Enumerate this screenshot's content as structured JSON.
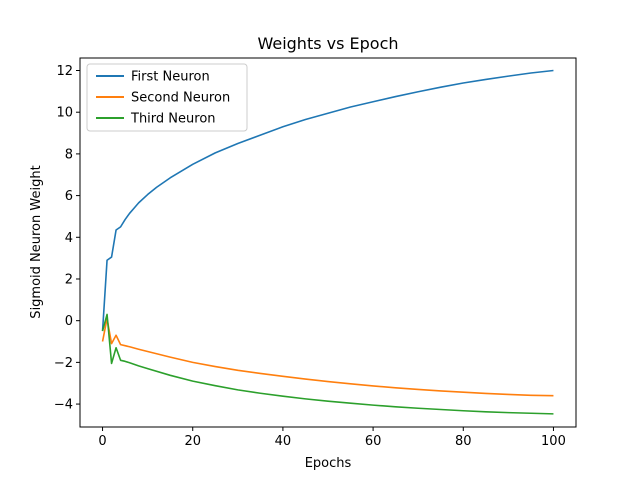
{
  "chart_data": {
    "type": "line",
    "title": "Weights vs Epoch",
    "xlabel": "Epochs",
    "ylabel": "Sigmoid Neuron Weight",
    "xlim": [
      -5,
      105
    ],
    "ylim": [
      -5.1,
      12.6
    ],
    "xticks": [
      0,
      20,
      40,
      60,
      80,
      100
    ],
    "yticks": [
      -4,
      -2,
      0,
      2,
      4,
      6,
      8,
      10,
      12
    ],
    "grid": false,
    "legend_position": "upper-left",
    "series": [
      {
        "name": "First Neuron",
        "color": "#1f77b4",
        "x": [
          0,
          1,
          2,
          3,
          4,
          5,
          6,
          7,
          8,
          10,
          12,
          15,
          20,
          25,
          30,
          35,
          40,
          45,
          50,
          55,
          60,
          65,
          70,
          75,
          80,
          85,
          90,
          95,
          100
        ],
        "y": [
          -0.5,
          2.9,
          3.05,
          4.35,
          4.5,
          4.85,
          5.15,
          5.4,
          5.65,
          6.05,
          6.4,
          6.85,
          7.5,
          8.05,
          8.5,
          8.9,
          9.3,
          9.65,
          9.95,
          10.25,
          10.5,
          10.75,
          10.98,
          11.2,
          11.4,
          11.57,
          11.73,
          11.88,
          12.0
        ]
      },
      {
        "name": "Second Neuron",
        "color": "#ff7f0e",
        "x": [
          0,
          1,
          2,
          3,
          4,
          5,
          6,
          8,
          10,
          15,
          20,
          25,
          30,
          35,
          40,
          45,
          50,
          55,
          60,
          65,
          70,
          75,
          80,
          85,
          90,
          95,
          100
        ],
        "y": [
          -1.0,
          0.1,
          -1.1,
          -0.7,
          -1.15,
          -1.2,
          -1.25,
          -1.37,
          -1.48,
          -1.75,
          -2.0,
          -2.2,
          -2.38,
          -2.53,
          -2.67,
          -2.8,
          -2.92,
          -3.03,
          -3.13,
          -3.22,
          -3.3,
          -3.37,
          -3.43,
          -3.49,
          -3.54,
          -3.58,
          -3.6
        ]
      },
      {
        "name": "Third Neuron",
        "color": "#2ca02c",
        "x": [
          0,
          1,
          2,
          3,
          4,
          5,
          6,
          8,
          10,
          15,
          20,
          25,
          30,
          35,
          40,
          45,
          50,
          55,
          60,
          65,
          70,
          75,
          80,
          85,
          90,
          95,
          100
        ],
        "y": [
          -0.5,
          0.3,
          -2.05,
          -1.3,
          -1.9,
          -1.95,
          -2.02,
          -2.17,
          -2.3,
          -2.62,
          -2.9,
          -3.12,
          -3.32,
          -3.48,
          -3.62,
          -3.75,
          -3.86,
          -3.96,
          -4.05,
          -4.13,
          -4.2,
          -4.26,
          -4.32,
          -4.37,
          -4.41,
          -4.44,
          -4.47
        ]
      }
    ]
  }
}
